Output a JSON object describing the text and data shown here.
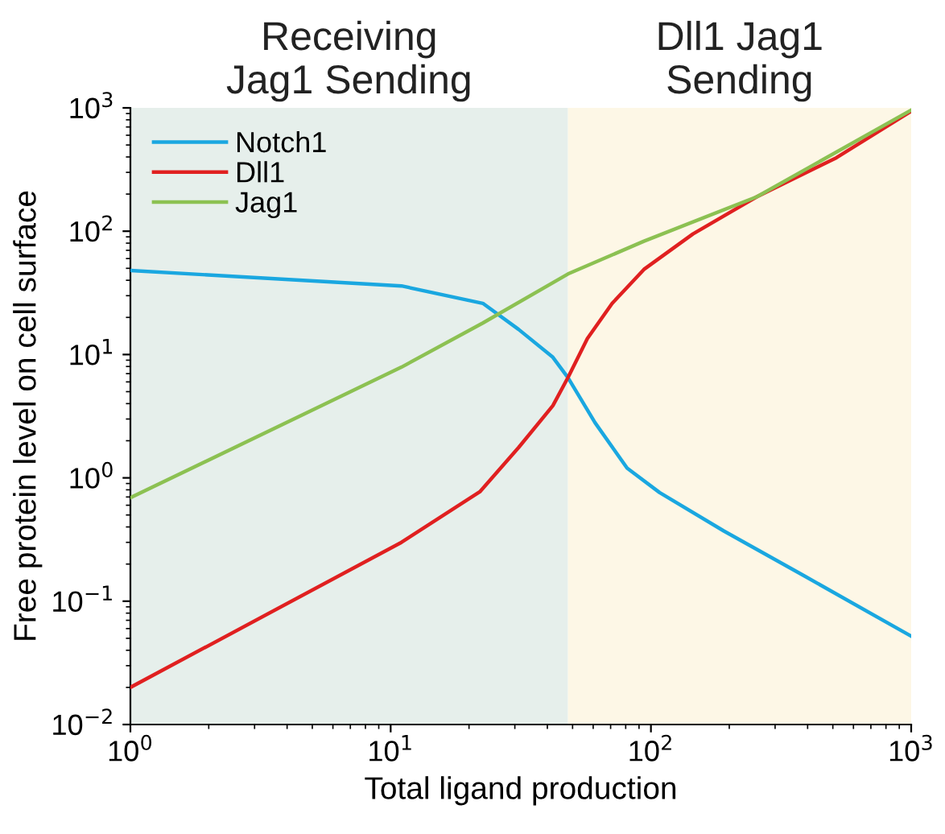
{
  "chart_data": {
    "type": "line",
    "xlabel": "Total ligand production",
    "ylabel": "Free protein level on cell surface",
    "log": "xy",
    "xlim": [
      1,
      1000
    ],
    "ylim": [
      0.01,
      1000
    ],
    "xticks": [
      {
        "value": 1,
        "label": "10$^{0}$"
      },
      {
        "value": 10,
        "label": "10$^{1}$"
      },
      {
        "value": 100,
        "label": "10$^{2}$"
      },
      {
        "value": 1000,
        "label": "10$^{3}$"
      }
    ],
    "yticks": [
      {
        "value": 0.01,
        "label": "10$^{−2}$"
      },
      {
        "value": 0.1,
        "label": "10$^{−1}$"
      },
      {
        "value": 1,
        "label": "10$^{0}$"
      },
      {
        "value": 10,
        "label": "10$^{1}$"
      },
      {
        "value": 100,
        "label": "10$^{2}$"
      },
      {
        "value": 1000,
        "label": "10$^{3}$"
      }
    ],
    "legend": "top left",
    "grid": false,
    "bands": [
      {
        "axis": "x",
        "from": 1,
        "to": 48,
        "label": "Receiving\nJag1 Sending",
        "color": "#e6efeb"
      },
      {
        "axis": "x",
        "from": 48,
        "to": 1000,
        "label": "Dll1 Jag1\nSending",
        "color": "#fdf7e6"
      }
    ],
    "series": [
      {
        "name": "Notch1",
        "color": "#1aa7e0",
        "x": [
          1,
          11,
          22.6,
          31,
          42,
          48,
          61,
          81,
          108,
          191,
          389,
          1000
        ],
        "values": [
          48,
          36,
          26,
          16,
          9.5,
          6.5,
          2.8,
          1.2,
          0.76,
          0.37,
          0.16,
          0.052
        ]
      },
      {
        "name": "Dll1",
        "color": "#e02020",
        "x": [
          1,
          11,
          22,
          31,
          42,
          48,
          57,
          71,
          94,
          145,
          255,
          516,
          1000
        ],
        "values": [
          0.02,
          0.3,
          0.77,
          1.76,
          3.85,
          6.5,
          13.5,
          26,
          49,
          95,
          190,
          394,
          940
        ]
      },
      {
        "name": "Jag1",
        "color": "#8cc152",
        "x": [
          1,
          11,
          22.6,
          48,
          94,
          255,
          1000
        ],
        "values": [
          0.69,
          7.9,
          18,
          45,
          83,
          190,
          960
        ]
      }
    ]
  }
}
